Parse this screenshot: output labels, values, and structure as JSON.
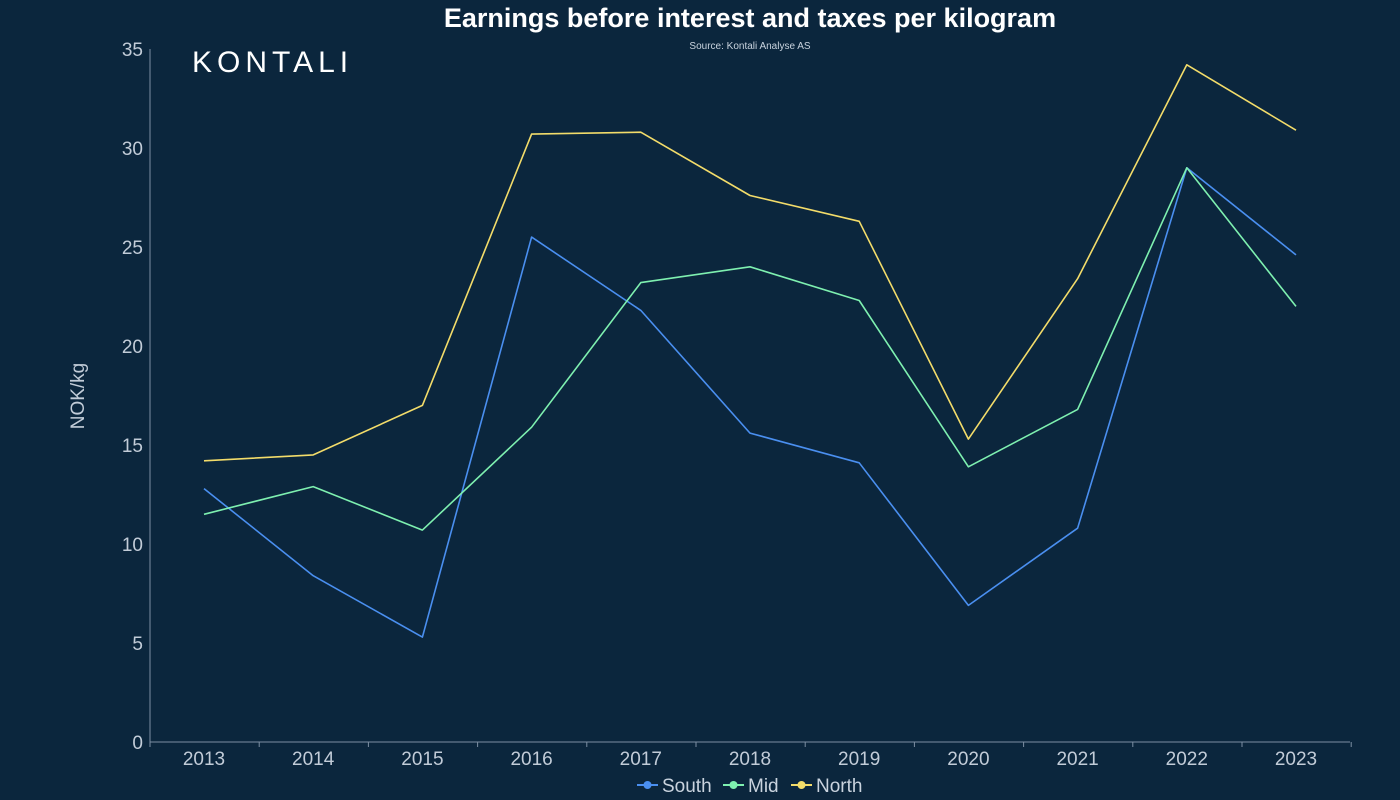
{
  "logo": "KONTALI",
  "chart_data": {
    "type": "line",
    "title": "Earnings before interest and taxes per kilogram",
    "subtitle": "Source: Kontali Analyse AS",
    "xlabel": "",
    "ylabel": "NOK/kg",
    "categories": [
      "2013",
      "2014",
      "2015",
      "2016",
      "2017",
      "2018",
      "2019",
      "2020",
      "2021",
      "2022",
      "2023"
    ],
    "ylim": [
      0,
      35
    ],
    "yticks": [
      0,
      5,
      10,
      15,
      20,
      25,
      30,
      35
    ],
    "grid": false,
    "legend": "bottom",
    "series": [
      {
        "name": "South",
        "color": "#4a8ff0",
        "values": [
          12.8,
          8.4,
          5.3,
          25.5,
          21.8,
          15.6,
          14.1,
          6.9,
          10.8,
          29.0,
          24.6
        ]
      },
      {
        "name": "Mid",
        "color": "#7ef0b0",
        "values": [
          11.5,
          12.9,
          10.7,
          15.9,
          23.2,
          24.0,
          22.3,
          13.9,
          16.8,
          29.0,
          22.0
        ]
      },
      {
        "name": "North",
        "color": "#f3dc6a",
        "values": [
          14.2,
          14.5,
          17.0,
          30.7,
          30.8,
          27.6,
          26.3,
          15.3,
          23.4,
          34.2,
          30.9
        ]
      }
    ]
  }
}
